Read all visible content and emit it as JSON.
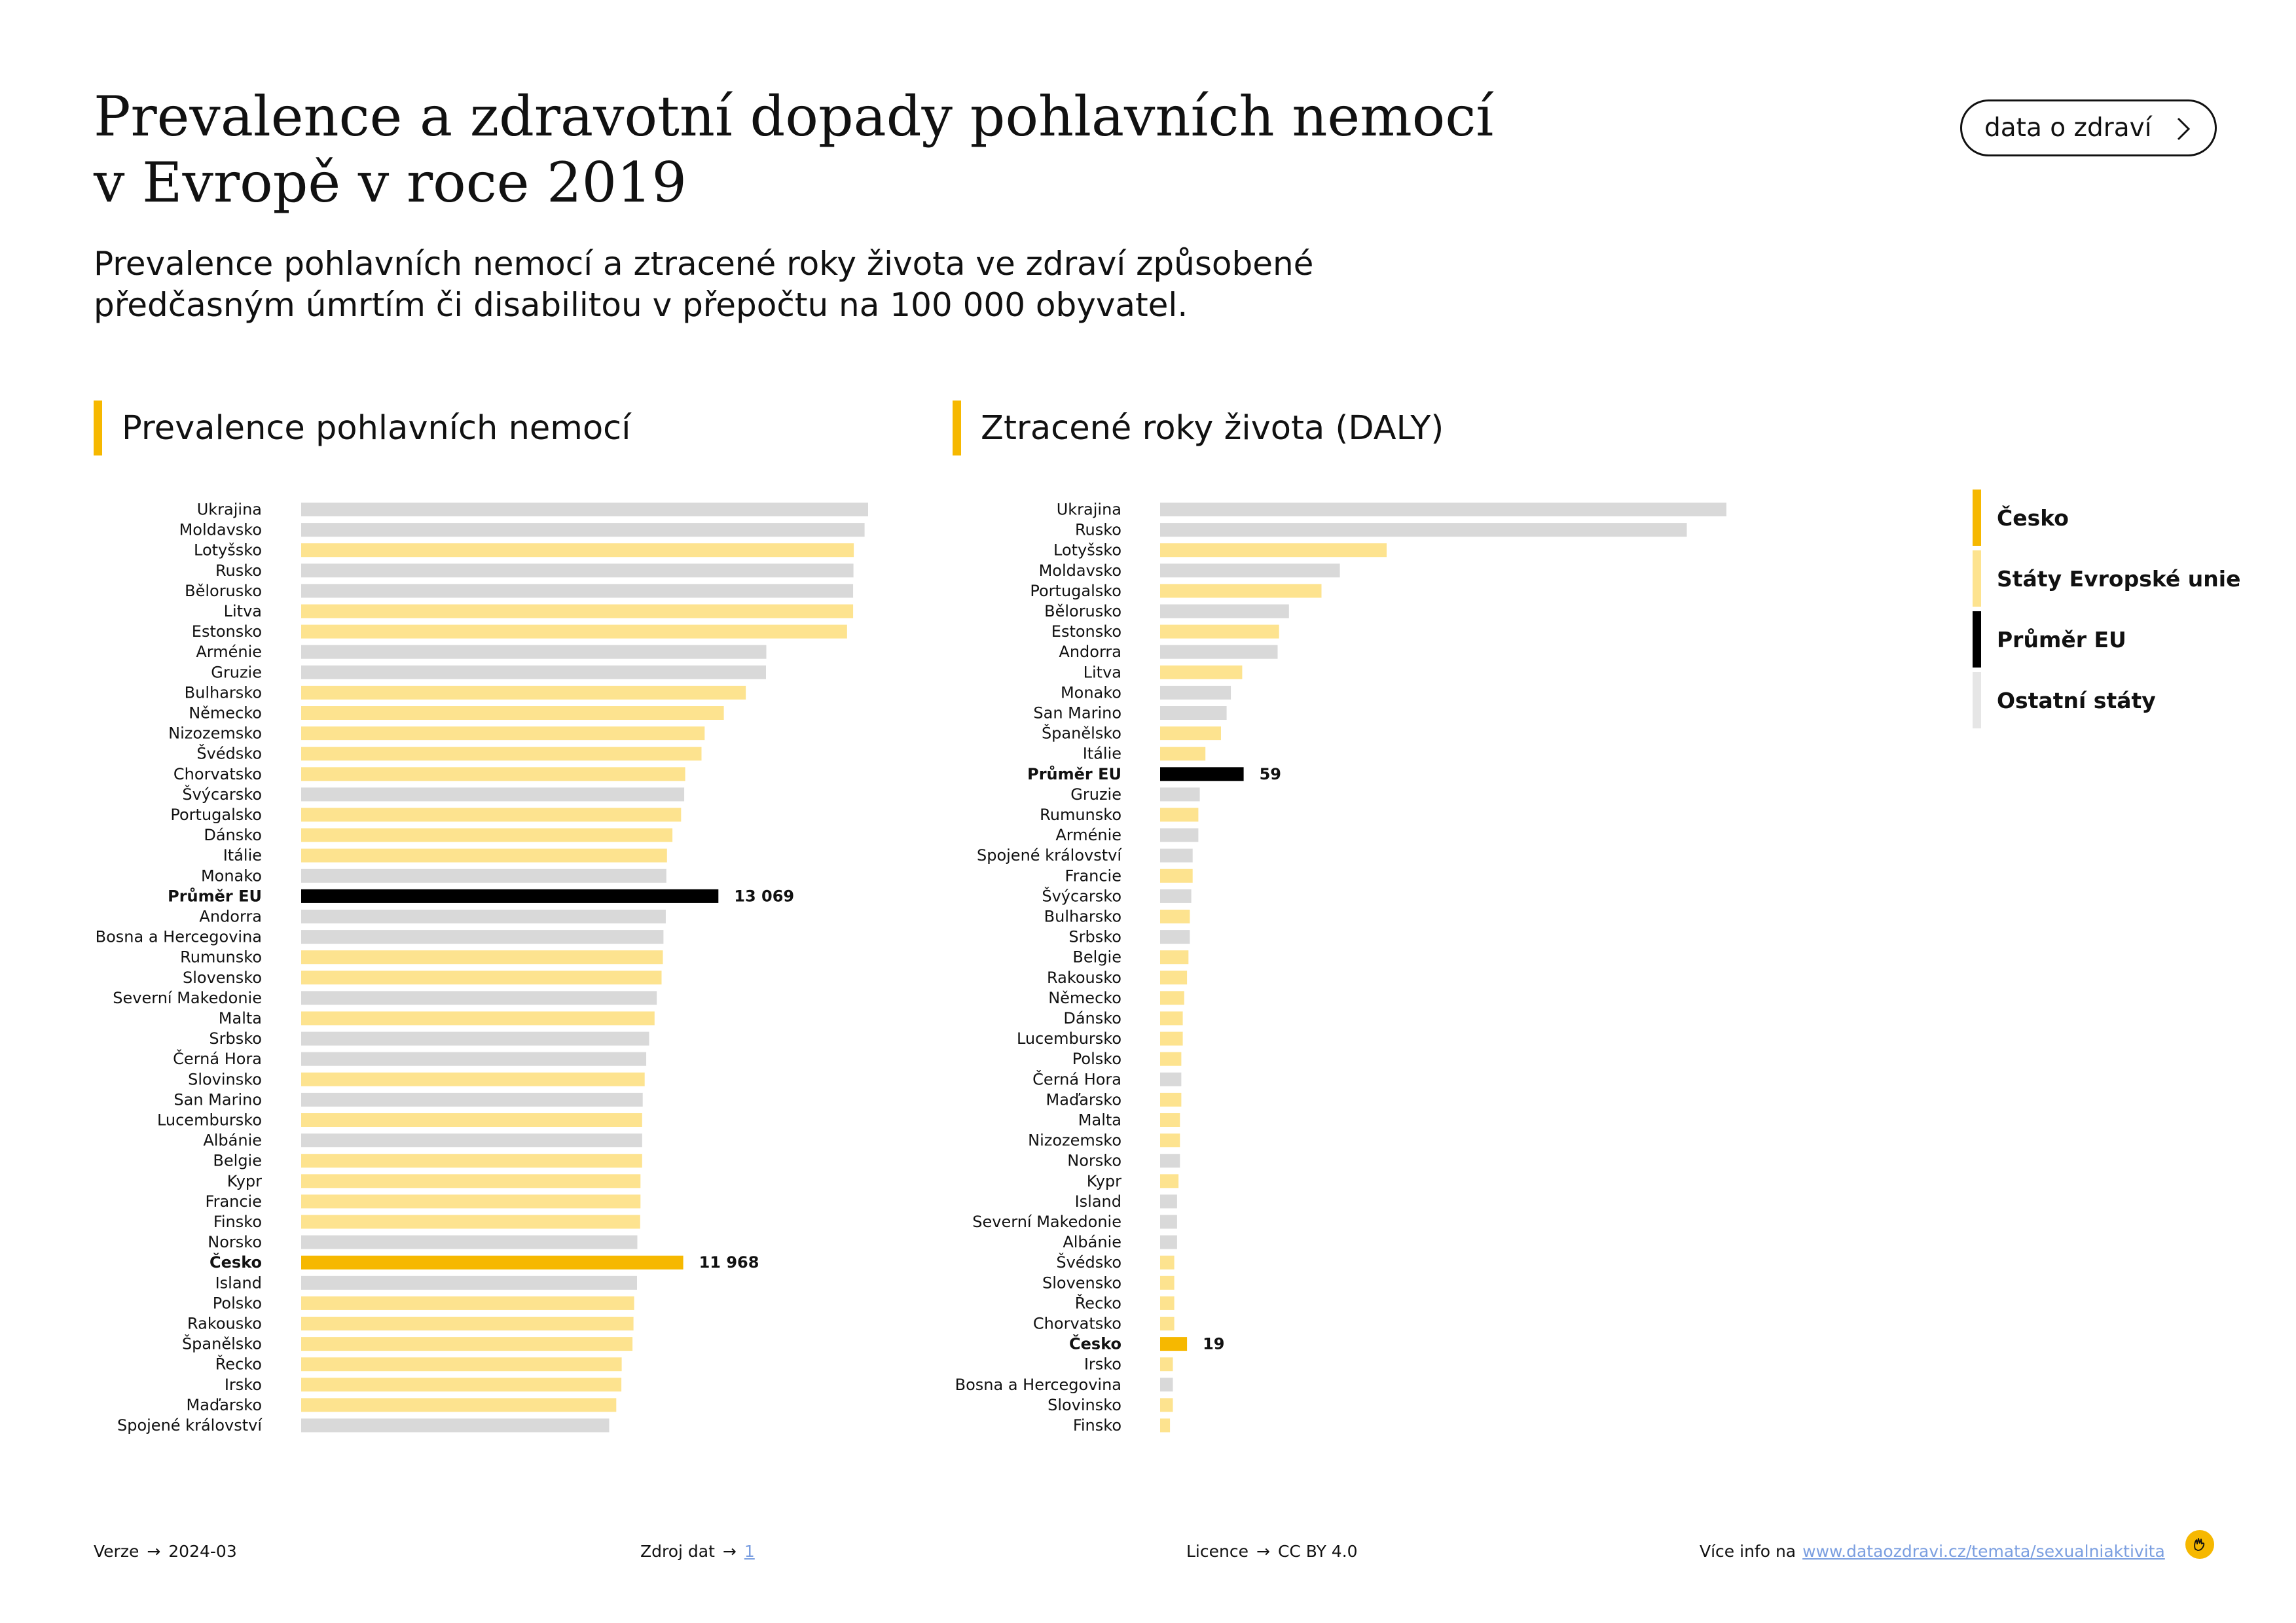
{
  "header": {
    "title_line1": "Prevalence a zdravotní dopady pohlavních nemocí",
    "title_line2": "v Evropě v roce 2019",
    "subtitle_line1": "Prevalence pohlavních nemocí a ztracené roky života ve zdraví způsobené",
    "subtitle_line2": "předčasným úmrtím či disabilitou v přepočtu na 100 000 obyvatel.",
    "button_label": "data o zdraví",
    "button_icon": "chevron-right-icon"
  },
  "colors": {
    "czech": "#f6b800",
    "eu_state": "#fde38f",
    "eu_average": "#000000",
    "other": "#d9d9d9",
    "accent": "#f6b800"
  },
  "legend": [
    {
      "label": "Česko",
      "color": "#f6b800"
    },
    {
      "label": "Státy Evropské unie",
      "color": "#fde38f"
    },
    {
      "label": "Průměr EU",
      "color": "#000000"
    },
    {
      "label": "Ostatní státy",
      "color": "#e6e6e6"
    }
  ],
  "chart_data": [
    {
      "type": "bar",
      "orientation": "horizontal",
      "title": "Prevalence pohlavních nemocí",
      "grid": false,
      "categories": [
        "Ukrajina",
        "Moldavsko",
        "Lotyšsko",
        "Rusko",
        "Bělorusko",
        "Litva",
        "Estonsko",
        "Arménie",
        "Gruzie",
        "Bulharsko",
        "Německo",
        "Nizozemsko",
        "Švédsko",
        "Chorvatsko",
        "Švýcarsko",
        "Portugalsko",
        "Dánsko",
        "Itálie",
        "Monako",
        "Průměr EU",
        "Andorra",
        "Bosna a Hercegovina",
        "Rumunsko",
        "Slovensko",
        "Severní Makedonie",
        "Malta",
        "Srbsko",
        "Černá Hora",
        "Slovinsko",
        "San Marino",
        "Lucembursko",
        "Albánie",
        "Belgie",
        "Kypr",
        "Francie",
        "Finsko",
        "Norsko",
        "Česko",
        "Island",
        "Polsko",
        "Rakousko",
        "Španělsko",
        "Řecko",
        "Irsko",
        "Maďarsko",
        "Spojené království"
      ],
      "values": [
        17760,
        17650,
        17310,
        17300,
        17290,
        17290,
        17100,
        14570,
        14560,
        13930,
        13240,
        12640,
        12540,
        12030,
        12000,
        11900,
        11630,
        11460,
        11440,
        13069,
        11420,
        11350,
        11330,
        11290,
        11140,
        11070,
        10900,
        10810,
        10760,
        10700,
        10680,
        10680,
        10680,
        10630,
        10630,
        10620,
        10530,
        11968,
        10520,
        10430,
        10410,
        10380,
        10040,
        10030,
        9870,
        9650
      ],
      "groups": [
        "other",
        "other",
        "eu",
        "other",
        "other",
        "eu",
        "eu",
        "other",
        "other",
        "eu",
        "eu",
        "eu",
        "eu",
        "eu",
        "other",
        "eu",
        "eu",
        "eu",
        "other",
        "avg",
        "other",
        "other",
        "eu",
        "eu",
        "other",
        "eu",
        "other",
        "other",
        "eu",
        "other",
        "eu",
        "other",
        "eu",
        "eu",
        "eu",
        "eu",
        "other",
        "cz",
        "other",
        "eu",
        "eu",
        "eu",
        "eu",
        "eu",
        "eu",
        "other"
      ],
      "data_labels": {
        "Průměr EU": "13 069",
        "Česko": "11 968"
      }
    },
    {
      "type": "bar",
      "orientation": "horizontal",
      "title": "Ztracené roky života (DALY)",
      "grid": false,
      "categories": [
        "Ukrajina",
        "Rusko",
        "Lotyšsko",
        "Moldavsko",
        "Portugalsko",
        "Bělorusko",
        "Estonsko",
        "Andorra",
        "Litva",
        "Monako",
        "San Marino",
        "Španělsko",
        "Itálie",
        "Průměr EU",
        "Gruzie",
        "Rumunsko",
        "Arménie",
        "Spojené království",
        "Francie",
        "Švýcarsko",
        "Bulharsko",
        "Srbsko",
        "Belgie",
        "Rakousko",
        "Německo",
        "Dánsko",
        "Lucembursko",
        "Polsko",
        "Černá Hora",
        "Maďarsko",
        "Malta",
        "Nizozemsko",
        "Norsko",
        "Kypr",
        "Island",
        "Severní Makedonie",
        "Albánie",
        "Švédsko",
        "Slovensko",
        "Řecko",
        "Chorvatsko",
        "Česko",
        "Irsko",
        "Bosna a Hercegovina",
        "Slovinsko",
        "Finsko"
      ],
      "values": [
        400,
        372,
        160,
        127,
        114,
        91,
        84,
        83,
        58,
        50,
        47,
        43,
        32,
        59,
        28,
        27,
        27,
        23,
        23,
        22,
        21,
        21,
        20,
        19,
        17,
        16,
        16,
        15,
        15,
        15,
        14,
        14,
        14,
        13,
        12,
        12,
        12,
        10,
        10,
        10,
        10,
        19,
        9,
        9,
        9,
        7
      ],
      "groups": [
        "other",
        "other",
        "eu",
        "other",
        "eu",
        "other",
        "eu",
        "other",
        "eu",
        "other",
        "other",
        "eu",
        "eu",
        "avg",
        "other",
        "eu",
        "other",
        "other",
        "eu",
        "other",
        "eu",
        "other",
        "eu",
        "eu",
        "eu",
        "eu",
        "eu",
        "eu",
        "other",
        "eu",
        "eu",
        "eu",
        "other",
        "eu",
        "other",
        "other",
        "other",
        "eu",
        "eu",
        "eu",
        "eu",
        "cz",
        "eu",
        "other",
        "eu",
        "eu"
      ],
      "data_labels": {
        "Průměr EU": "59",
        "Česko": "19"
      }
    }
  ],
  "footer": {
    "version_label": "Verze",
    "version_value": "2024-03",
    "source_label": "Zdroj dat",
    "source_value": "1",
    "license_label": "Licence",
    "license_value": "CC BY 4.0",
    "more_label": "Více info na",
    "more_link": "www.dataozdravi.cz/temata/sexualniaktivita",
    "arrow": "→"
  }
}
